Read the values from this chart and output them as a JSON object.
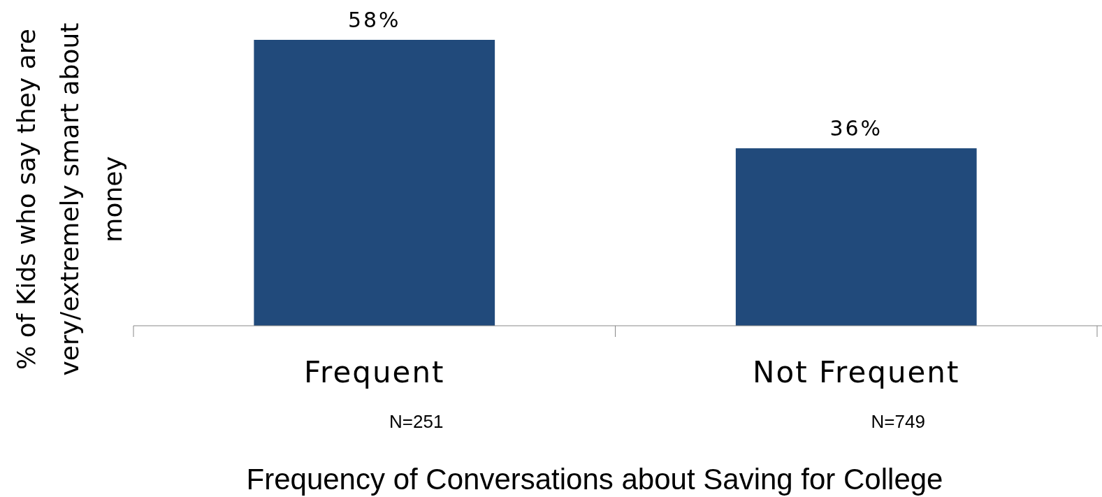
{
  "chart_data": {
    "type": "bar",
    "xlabel": "Frequency of Conversations about Saving for College",
    "ylabel": "% of Kids who say they are very/extremely smart about money",
    "categories": [
      "Frequent",
      "Not Frequent"
    ],
    "values": [
      58,
      36
    ],
    "color": "#214a7b",
    "value_labels": [
      "58%",
      "36%"
    ],
    "annotations": [
      "N=251",
      "N=749"
    ]
  }
}
